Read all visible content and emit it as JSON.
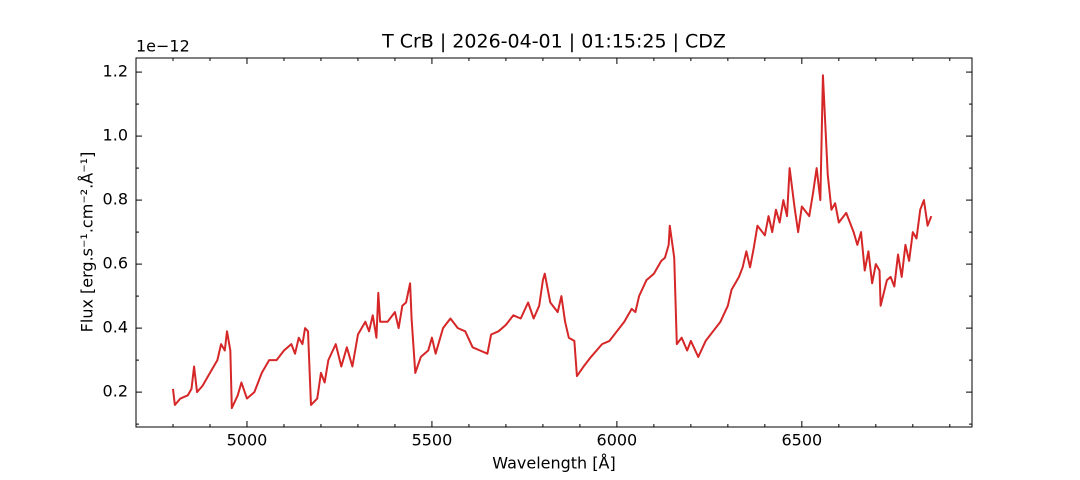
{
  "chart_data": {
    "type": "line",
    "title": "T CrB | 2026-04-01 | 01:15:25 | CDZ",
    "xlabel": "Wavelength [Å]",
    "ylabel": "Flux [erg.s⁻¹.cm⁻².Å⁻¹]",
    "y_offset_label": "1e−12",
    "color": "#d62728",
    "xlim": [
      4700,
      6960
    ],
    "ylim": [
      0.091,
      1.244
    ],
    "xticks": [
      5000,
      5500,
      6000,
      6500
    ],
    "yticks": [
      0.2,
      0.4,
      0.6,
      0.8,
      {
        "value": 1,
        "label": "1.0"
      },
      1.2
    ],
    "xticks_minor": [
      4800,
      4900,
      5100,
      5200,
      5300,
      5400,
      5600,
      5700,
      5800,
      5900,
      6100,
      6200,
      6300,
      6400,
      6600,
      6700,
      6800,
      6900
    ],
    "yticks_minor": [
      0.1,
      0.3,
      0.5,
      0.7,
      0.9,
      1.1
    ],
    "x": [
      4800,
      4805,
      4820,
      4840,
      4850,
      4857,
      4865,
      4880,
      4900,
      4920,
      4930,
      4940,
      4946,
      4955,
      4959,
      4975,
      4985,
      5000,
      5020,
      5040,
      5060,
      5080,
      5100,
      5120,
      5130,
      5140,
      5150,
      5157,
      5165,
      5173,
      5190,
      5200,
      5210,
      5220,
      5240,
      5255,
      5270,
      5285,
      5300,
      5320,
      5330,
      5340,
      5350,
      5355,
      5360,
      5380,
      5400,
      5410,
      5420,
      5430,
      5441,
      5445,
      5455,
      5470,
      5490,
      5500,
      5510,
      5530,
      5550,
      5570,
      5590,
      5610,
      5630,
      5650,
      5660,
      5680,
      5700,
      5720,
      5740,
      5760,
      5775,
      5790,
      5800,
      5805,
      5820,
      5840,
      5850,
      5860,
      5870,
      5885,
      5892,
      5910,
      5930,
      5960,
      5980,
      6000,
      6020,
      6040,
      6050,
      6060,
      6080,
      6100,
      6120,
      6130,
      6140,
      6143,
      6155,
      6162,
      6175,
      6190,
      6200,
      6220,
      6240,
      6260,
      6280,
      6300,
      6310,
      6330,
      6340,
      6350,
      6360,
      6370,
      6380,
      6400,
      6410,
      6420,
      6430,
      6440,
      6450,
      6460,
      6467,
      6480,
      6490,
      6500,
      6520,
      6530,
      6540,
      6550,
      6557,
      6570,
      6580,
      6590,
      6600,
      6620,
      6640,
      6650,
      6660,
      6670,
      6680,
      6690,
      6700,
      6710,
      6713,
      6730,
      6740,
      6750,
      6760,
      6770,
      6780,
      6790,
      6800,
      6810,
      6820,
      6830,
      6840,
      6850
    ],
    "values": [
      0.21,
      0.16,
      0.18,
      0.19,
      0.21,
      0.28,
      0.2,
      0.22,
      0.26,
      0.3,
      0.35,
      0.33,
      0.39,
      0.33,
      0.15,
      0.19,
      0.23,
      0.18,
      0.2,
      0.26,
      0.3,
      0.3,
      0.33,
      0.35,
      0.32,
      0.37,
      0.35,
      0.4,
      0.39,
      0.16,
      0.18,
      0.26,
      0.23,
      0.3,
      0.35,
      0.28,
      0.34,
      0.28,
      0.38,
      0.42,
      0.39,
      0.44,
      0.37,
      0.51,
      0.42,
      0.42,
      0.45,
      0.4,
      0.47,
      0.48,
      0.54,
      0.43,
      0.26,
      0.31,
      0.33,
      0.37,
      0.32,
      0.4,
      0.43,
      0.4,
      0.39,
      0.34,
      0.33,
      0.32,
      0.38,
      0.39,
      0.41,
      0.44,
      0.43,
      0.48,
      0.43,
      0.47,
      0.55,
      0.57,
      0.48,
      0.45,
      0.5,
      0.42,
      0.37,
      0.36,
      0.25,
      0.28,
      0.31,
      0.35,
      0.36,
      0.39,
      0.42,
      0.46,
      0.45,
      0.5,
      0.55,
      0.57,
      0.61,
      0.62,
      0.66,
      0.72,
      0.62,
      0.35,
      0.37,
      0.33,
      0.36,
      0.31,
      0.36,
      0.39,
      0.42,
      0.47,
      0.52,
      0.56,
      0.59,
      0.64,
      0.59,
      0.65,
      0.72,
      0.69,
      0.75,
      0.7,
      0.77,
      0.73,
      0.8,
      0.75,
      0.9,
      0.78,
      0.7,
      0.78,
      0.75,
      0.82,
      0.9,
      0.8,
      1.19,
      0.88,
      0.77,
      0.79,
      0.73,
      0.76,
      0.7,
      0.66,
      0.7,
      0.58,
      0.64,
      0.54,
      0.6,
      0.58,
      0.47,
      0.55,
      0.56,
      0.53,
      0.63,
      0.56,
      0.66,
      0.61,
      0.7,
      0.68,
      0.77,
      0.8,
      0.72,
      0.75
    ]
  }
}
